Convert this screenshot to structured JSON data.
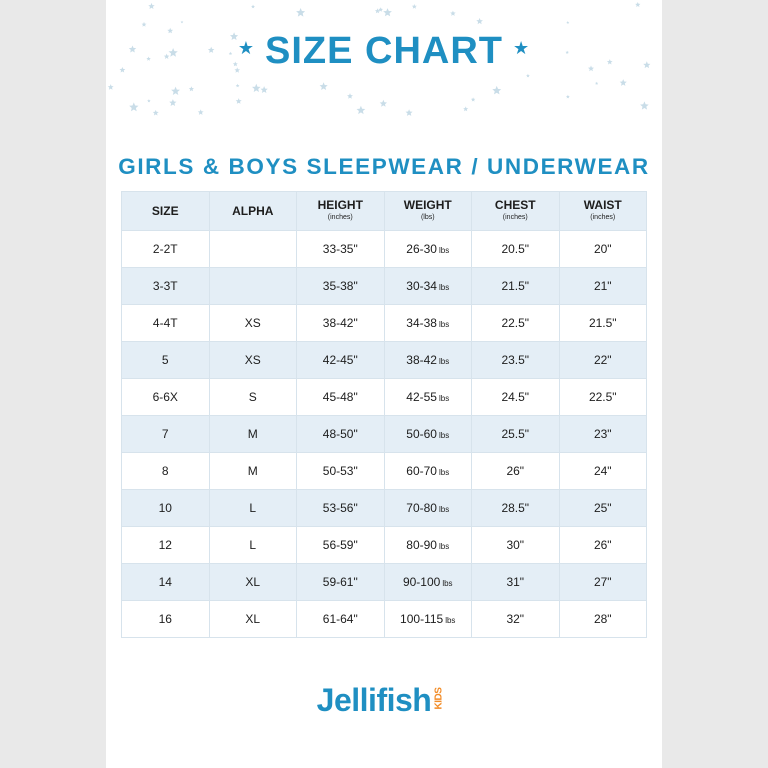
{
  "header": {
    "title": "SIZE CHART"
  },
  "table": {
    "heading": "GIRLS & BOYS SLEEPWEAR / UNDERWEAR",
    "columns": [
      {
        "label": "SIZE",
        "sub": ""
      },
      {
        "label": "ALPHA",
        "sub": ""
      },
      {
        "label": "HEIGHT",
        "sub": "(inches)"
      },
      {
        "label": "WEIGHT",
        "sub": "(lbs)"
      },
      {
        "label": "CHEST",
        "sub": "(inches)"
      },
      {
        "label": "WAIST",
        "sub": "(inches)"
      }
    ],
    "rows": [
      {
        "size": "2-2T",
        "alpha": "",
        "height": "33-35\"",
        "weight": "26-30",
        "unit": "lbs",
        "chest": "20.5\"",
        "waist": "20\""
      },
      {
        "size": "3-3T",
        "alpha": "",
        "height": "35-38\"",
        "weight": "30-34",
        "unit": "lbs",
        "chest": "21.5\"",
        "waist": "21\""
      },
      {
        "size": "4-4T",
        "alpha": "XS",
        "height": "38-42\"",
        "weight": "34-38",
        "unit": "lbs",
        "chest": "22.5\"",
        "waist": "21.5\""
      },
      {
        "size": "5",
        "alpha": "XS",
        "height": "42-45\"",
        "weight": "38-42",
        "unit": "lbs",
        "chest": "23.5\"",
        "waist": "22\""
      },
      {
        "size": "6-6X",
        "alpha": "S",
        "height": "45-48\"",
        "weight": "42-55",
        "unit": "lbs",
        "chest": "24.5\"",
        "waist": "22.5\""
      },
      {
        "size": "7",
        "alpha": "M",
        "height": "48-50\"",
        "weight": "50-60",
        "unit": "lbs",
        "chest": "25.5\"",
        "waist": "23\""
      },
      {
        "size": "8",
        "alpha": "M",
        "height": "50-53\"",
        "weight": "60-70",
        "unit": "lbs",
        "chest": "26\"",
        "waist": "24\""
      },
      {
        "size": "10",
        "alpha": "L",
        "height": "53-56\"",
        "weight": "70-80",
        "unit": "lbs",
        "chest": "28.5\"",
        "waist": "25\""
      },
      {
        "size": "12",
        "alpha": "L",
        "height": "56-59\"",
        "weight": "80-90",
        "unit": "lbs",
        "chest": "30\"",
        "waist": "26\""
      },
      {
        "size": "14",
        "alpha": "XL",
        "height": "59-61\"",
        "weight": "90-100",
        "unit": "lbs",
        "chest": "31\"",
        "waist": "27\""
      },
      {
        "size": "16",
        "alpha": "XL",
        "height": "61-64\"",
        "weight": "100-115",
        "unit": "lbs",
        "chest": "32\"",
        "waist": "28\""
      }
    ]
  },
  "brand": {
    "name": "Jellifish",
    "tag": "KIDS"
  },
  "colors": {
    "accent": "#1f8fc2",
    "stripe": "#e4eef6",
    "kids": "#f28c28"
  }
}
